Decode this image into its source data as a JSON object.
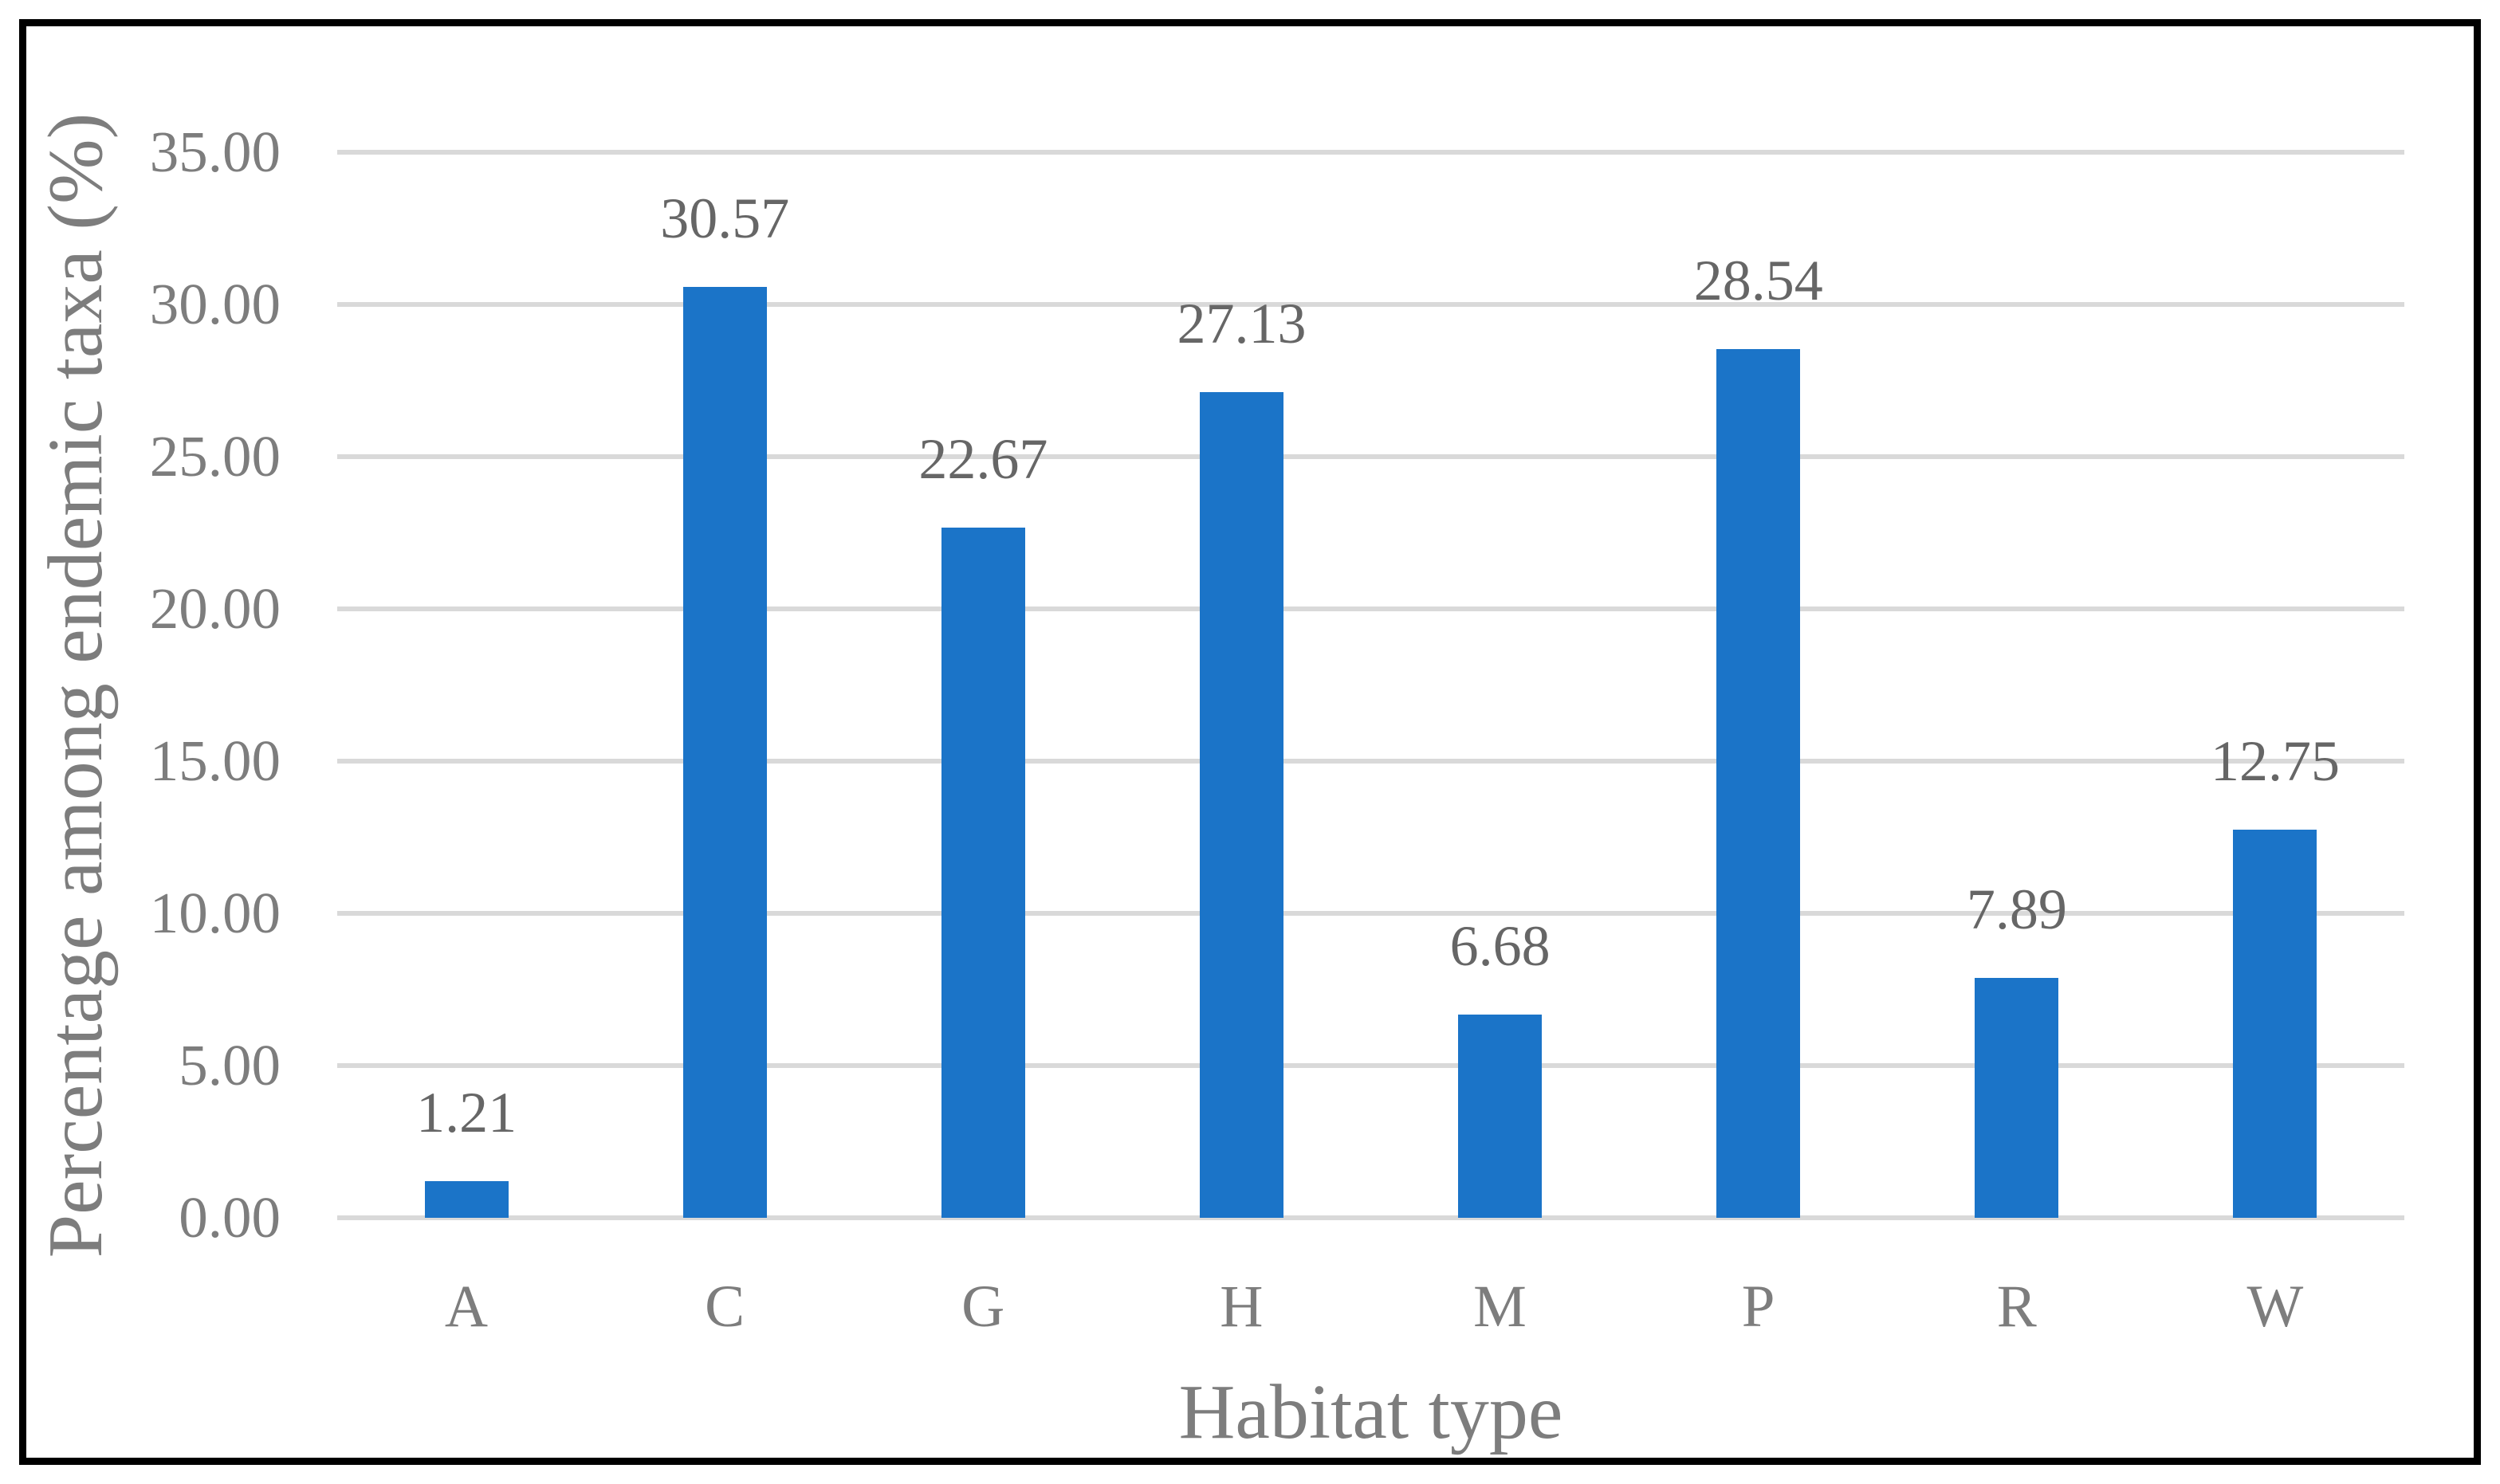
{
  "chart_data": {
    "type": "bar",
    "title": "",
    "categories": [
      "A",
      "C",
      "G",
      "H",
      "M",
      "P",
      "R",
      "W"
    ],
    "values": [
      1.21,
      30.57,
      22.67,
      27.13,
      6.68,
      28.54,
      7.89,
      12.75
    ],
    "value_labels": [
      "1.21",
      "30.57",
      "22.67",
      "27.13",
      "6.68",
      "28.54",
      "7.89",
      "12.75"
    ],
    "xlabel": "Habitat type",
    "ylabel": "Percentage among endemic taxa (%)",
    "ylim": [
      0,
      35
    ],
    "ytick_step": 5,
    "ytick_labels": [
      "0.00",
      "5.00",
      "10.00",
      "15.00",
      "20.00",
      "25.00",
      "30.00",
      "35.00"
    ],
    "grid": true,
    "legend": "none",
    "colors": {
      "bar": "#1b74c8",
      "gridline": "#d9d9d9",
      "tick_text": "#7d7d7d",
      "data_label_text": "#666666",
      "axis_title_text": "#7d7d7d",
      "frame_border": "#000000",
      "background": "#ffffff"
    }
  }
}
